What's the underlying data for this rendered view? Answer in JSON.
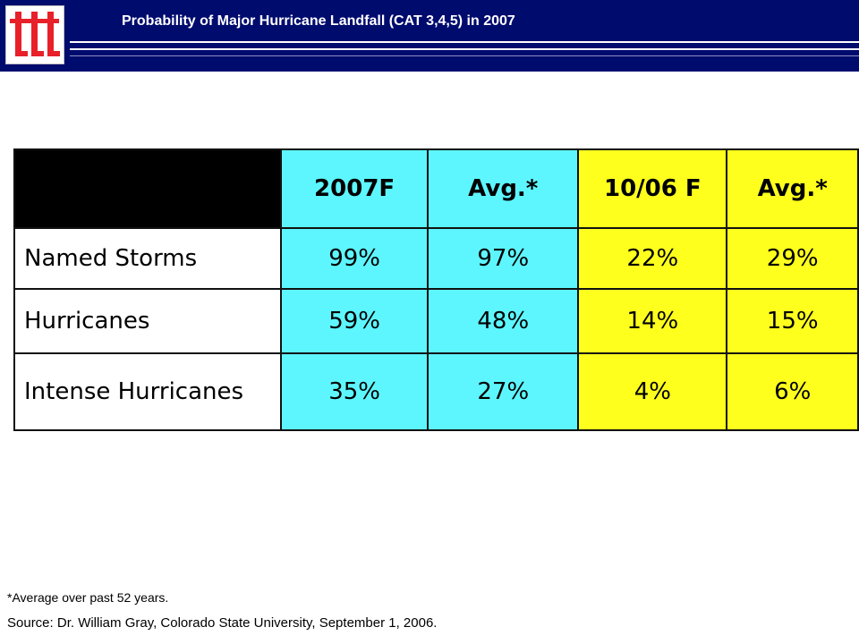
{
  "header": {
    "title": "Probability of Major Hurricane Landfall (CAT 3,4,5) in 2007",
    "logo_icon": "ttt-logo-icon"
  },
  "table": {
    "columns": [
      "",
      "2007F",
      "Avg.*",
      "10/06 F",
      "Avg.*"
    ],
    "rows": [
      {
        "label": "Named Storms",
        "values": [
          "99%",
          "97%",
          "22%",
          "29%"
        ]
      },
      {
        "label": "Hurricanes",
        "values": [
          "59%",
          "48%",
          "14%",
          "15%"
        ]
      },
      {
        "label": "Intense Hurricanes",
        "values": [
          "35%",
          "27%",
          "4%",
          "6%"
        ]
      }
    ]
  },
  "footnotes": {
    "average_note": "*Average over past 52 years.",
    "source": "Source: Dr. William Gray, Colorado State University, September 1, 2006."
  },
  "colors": {
    "header_bg": "#000b6e",
    "cyan_columns": "#5df6ff",
    "yellow_columns": "#ffff1e",
    "logo_red": "#e8202a"
  }
}
